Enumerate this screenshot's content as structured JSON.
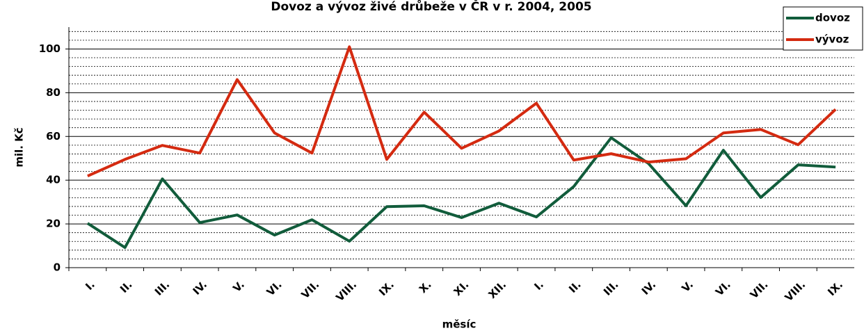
{
  "chart_data": {
    "type": "line",
    "title": "Dovoz a vývoz živé drůbeže v ČR v r. 2004, 2005",
    "x_label": "měsíc",
    "y_label": "mil. Kč",
    "categories": [
      "I.",
      "II.",
      "III.",
      "IV.",
      "V.",
      "VI.",
      "VII.",
      "VIII.",
      "IX.",
      "X.",
      "XI.",
      "XII.",
      "I.",
      "II.",
      "III.",
      "IV.",
      "V.",
      "VI.",
      "VII.",
      "VIII.",
      "IX."
    ],
    "series": [
      {
        "name": "dovoz",
        "color": "#115c3b",
        "values": [
          20.3,
          9.2,
          40.6,
          20.6,
          24.1,
          14.9,
          21.9,
          12.1,
          27.9,
          28.3,
          22.9,
          29.5,
          23.2,
          37.1,
          59.4,
          47.6,
          28.3,
          53.7,
          32.1,
          47,
          46
        ]
      },
      {
        "name": "vývoz",
        "color": "#d42a10",
        "values": [
          41.9,
          49.5,
          55.9,
          52.4,
          86,
          61.6,
          52.4,
          101,
          49.5,
          71.1,
          54.6,
          62.5,
          75.2,
          49.2,
          52.1,
          48.3,
          49.8,
          61.6,
          63.2,
          56.2,
          72.4
        ]
      }
    ],
    "ylim": [
      0,
      110
    ],
    "yticks": [
      0,
      20,
      40,
      60,
      80,
      100
    ],
    "minor_gridlines": [
      4,
      8,
      12,
      16,
      24,
      28,
      32,
      36,
      44,
      48,
      52,
      56,
      64,
      68,
      72,
      76,
      84,
      88,
      92,
      96,
      104,
      108
    ],
    "grid": true,
    "legend": "top-right"
  }
}
